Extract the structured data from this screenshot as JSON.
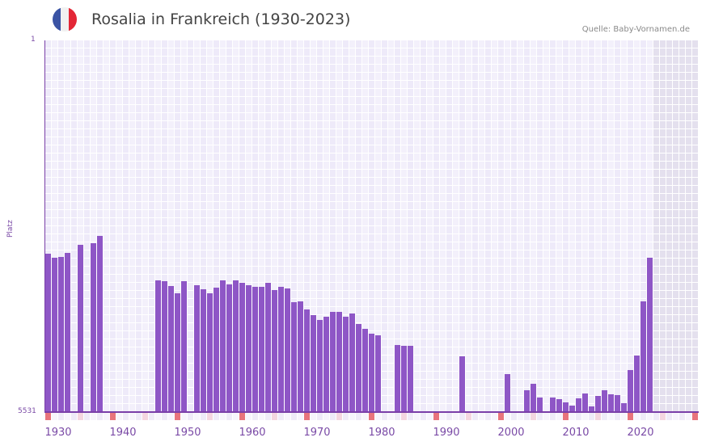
{
  "header": {
    "title": "Rosalia in Frankreich (1930-2023)",
    "source": "Quelle: Baby-Vornamen.de",
    "flag": {
      "name": "france-flag",
      "colors": [
        "#3a53a4",
        "#f1f1f1",
        "#e32636"
      ]
    }
  },
  "colors": {
    "bar": "#8e56c6",
    "grid_col_a": "#eeeaf9",
    "grid_col_b": "#f3f0fb",
    "forecast_shade": "#e4e0ee",
    "axis": "#7a3fa8",
    "decade_marker": "#e8747c",
    "half_decade_marker": "#f4d6e0"
  },
  "chart_data": {
    "type": "bar",
    "title": "Rosalia in Frankreich (1930-2023)",
    "xlabel": "",
    "ylabel": "Platz",
    "y_axis_inverted": true,
    "ylim": [
      1,
      5531
    ],
    "y_ticks": [
      "1",
      "5531"
    ],
    "x_range": [
      1930,
      2030
    ],
    "x_ticks": [
      "1930",
      "1940",
      "1950",
      "1960",
      "1970",
      "1980",
      "1990",
      "2000",
      "2010",
      "2020"
    ],
    "grid": true,
    "shaded_future_from": 2024,
    "x": [
      1930,
      1931,
      1932,
      1933,
      1935,
      1937,
      1938,
      1947,
      1948,
      1949,
      1950,
      1951,
      1953,
      1954,
      1955,
      1956,
      1957,
      1958,
      1959,
      1960,
      1961,
      1962,
      1963,
      1964,
      1965,
      1966,
      1967,
      1968,
      1969,
      1970,
      1971,
      1972,
      1973,
      1974,
      1975,
      1976,
      1977,
      1978,
      1979,
      1980,
      1981,
      1984,
      1985,
      1986,
      1994,
      2001,
      2004,
      2005,
      2006,
      2008,
      2009,
      2010,
      2011,
      2012,
      2013,
      2014,
      2015,
      2016,
      2017,
      2018,
      2019,
      2020,
      2021,
      2022,
      2023
    ],
    "values": [
      3175,
      3235,
      3223,
      3163,
      3043,
      3019,
      2910,
      3571,
      3583,
      3656,
      3764,
      3583,
      3644,
      3704,
      3764,
      3680,
      3571,
      3632,
      3571,
      3608,
      3644,
      3668,
      3668,
      3608,
      3716,
      3668,
      3692,
      3896,
      3884,
      4004,
      4088,
      4161,
      4113,
      4040,
      4040,
      4113,
      4064,
      4221,
      4293,
      4365,
      4389,
      4533,
      4545,
      4545,
      4702,
      4966,
      5207,
      5111,
      5315,
      5315,
      5339,
      5387,
      5435,
      5327,
      5255,
      5447,
      5291,
      5207,
      5267,
      5279,
      5399,
      4906,
      4690,
      3884,
      3235
    ]
  }
}
